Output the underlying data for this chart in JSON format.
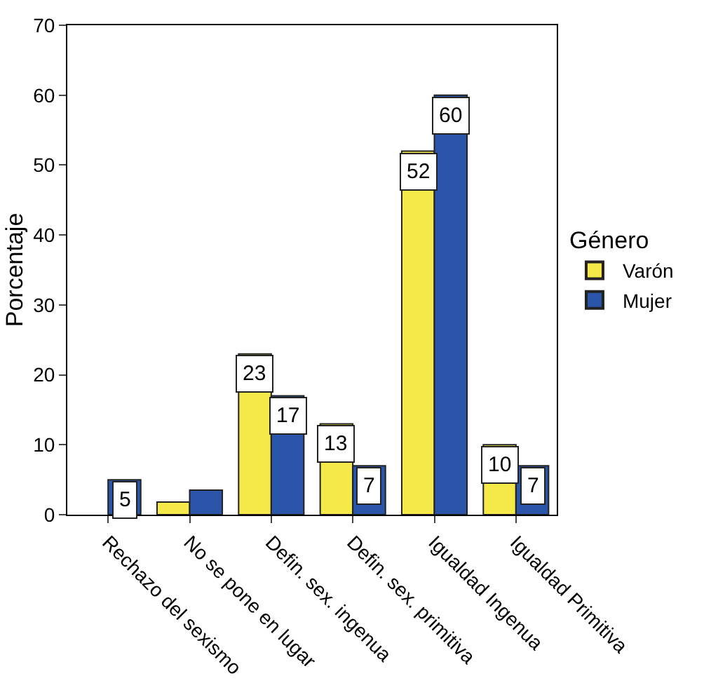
{
  "chart_data": {
    "type": "bar",
    "ylabel": "Porcentaje",
    "legend_title": "Género",
    "categories": [
      "Rechazo del sexismo",
      "No se pone en lugar",
      "Defin. sex. ingenua",
      "Defin. sex. primitiva",
      "Igualdad Ingenua",
      "Igualdad Primitiva"
    ],
    "series": [
      {
        "name": "Varón",
        "color": "#f5e94a",
        "values": [
          null,
          1.8,
          23,
          13,
          52,
          10
        ],
        "value_labels": [
          null,
          null,
          "23",
          "13",
          "52",
          "10"
        ]
      },
      {
        "name": "Mujer",
        "color": "#2b55a8",
        "values": [
          5,
          3.5,
          17,
          7,
          60,
          7
        ],
        "value_labels": [
          "5",
          null,
          "17",
          "7",
          "60",
          "7"
        ]
      }
    ],
    "ylim": [
      0,
      70
    ],
    "yticks": [
      0,
      10,
      20,
      30,
      40,
      50,
      60,
      70
    ],
    "legend": "right"
  }
}
